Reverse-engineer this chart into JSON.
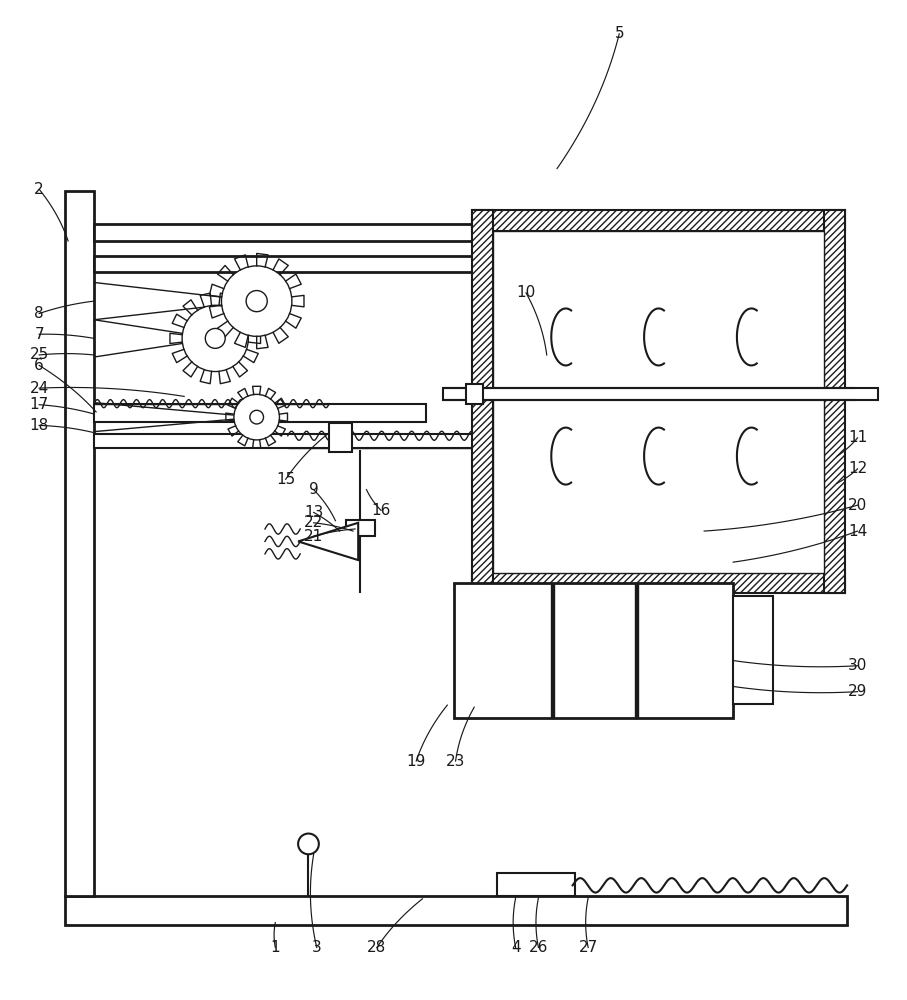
{
  "bg_color": "#ffffff",
  "line_color": "#1a1a1a",
  "figsize": [
    9.07,
    10.0
  ],
  "dpi": 100
}
